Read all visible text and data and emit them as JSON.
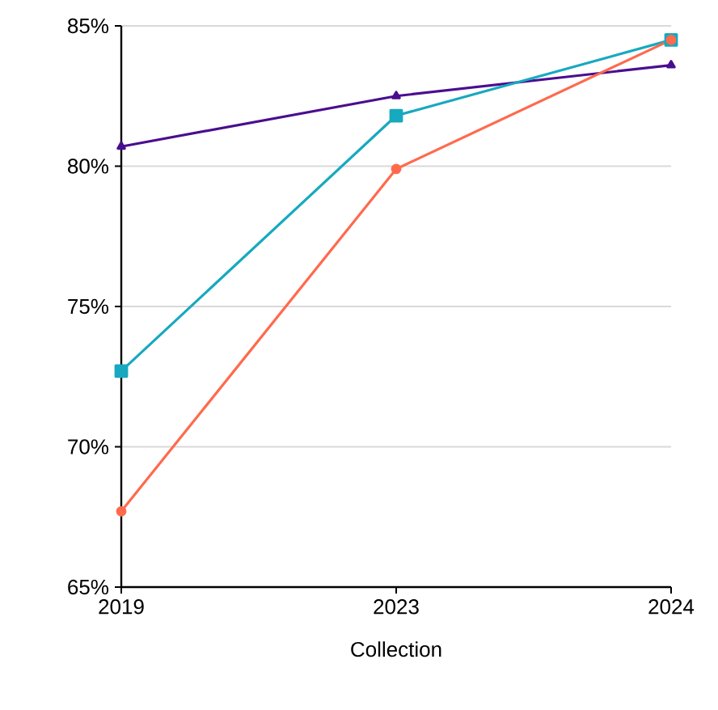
{
  "chart_data": {
    "type": "line",
    "xlabel": "Collection",
    "categories": [
      "2019",
      "2023",
      "2024"
    ],
    "series": [
      {
        "color": "#4a0d8f",
        "values": [
          80.7,
          82.5,
          83.6
        ],
        "marker": "triangle"
      },
      {
        "color": "#17a9bf",
        "values": [
          72.7,
          81.8,
          84.5
        ],
        "marker": "square"
      },
      {
        "color": "#ff6a4d",
        "values": [
          67.7,
          79.9,
          84.5
        ],
        "marker": "circle"
      }
    ],
    "ylim": [
      65,
      85
    ],
    "yticks": [
      {
        "value": 65,
        "label": "65%"
      },
      {
        "value": 70,
        "label": "70%"
      },
      {
        "value": 75,
        "label": "75%"
      },
      {
        "value": 80,
        "label": "80%"
      },
      {
        "value": 85,
        "label": "85%"
      }
    ],
    "grid": "y"
  }
}
